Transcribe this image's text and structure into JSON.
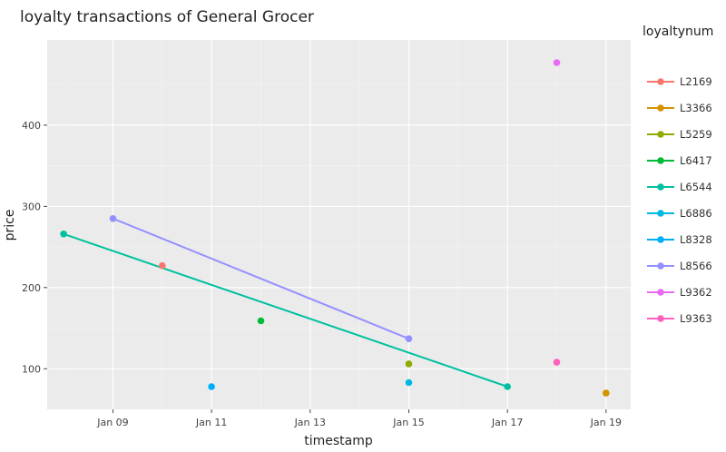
{
  "chart_data": {
    "type": "scatter",
    "title": "loyalty transactions of General Grocer",
    "xlabel": "timestamp",
    "ylabel": "price",
    "x_type": "date",
    "year": 2014,
    "xlim": [
      "2014-01-07T16:00",
      "2014-01-19T12:00"
    ],
    "ylim": [
      50,
      505
    ],
    "x_ticks": [
      {
        "date": "2014-01-09",
        "label": "Jan 09"
      },
      {
        "date": "2014-01-11",
        "label": "Jan 11"
      },
      {
        "date": "2014-01-13",
        "label": "Jan 13"
      },
      {
        "date": "2014-01-15",
        "label": "Jan 15"
      },
      {
        "date": "2014-01-17",
        "label": "Jan 17"
      },
      {
        "date": "2014-01-19",
        "label": "Jan 19"
      }
    ],
    "y_ticks": [
      100,
      200,
      300,
      400
    ],
    "grid": true,
    "legend": {
      "title": "loyaltynum",
      "position": "right"
    },
    "series": [
      {
        "name": "L2169",
        "color": "#F8766D",
        "points": [
          {
            "x": "2014-01-10",
            "y": 227
          }
        ]
      },
      {
        "name": "L3366",
        "color": "#D39200",
        "points": [
          {
            "x": "2014-01-19",
            "y": 70
          }
        ]
      },
      {
        "name": "L5259",
        "color": "#93AA00",
        "points": [
          {
            "x": "2014-01-15",
            "y": 106
          }
        ]
      },
      {
        "name": "L6417",
        "color": "#00BA38",
        "points": [
          {
            "x": "2014-01-12",
            "y": 159
          }
        ]
      },
      {
        "name": "L6544",
        "color": "#00C19F",
        "points": [
          {
            "x": "2014-01-08",
            "y": 266
          },
          {
            "x": "2014-01-17",
            "y": 78
          }
        ]
      },
      {
        "name": "L6886",
        "color": "#00B9E3",
        "points": [
          {
            "x": "2014-01-15",
            "y": 83
          }
        ]
      },
      {
        "name": "L8328",
        "color": "#00ADFA",
        "points": [
          {
            "x": "2014-01-11",
            "y": 78
          }
        ]
      },
      {
        "name": "L8566",
        "color": "#9590FF",
        "points": [
          {
            "x": "2014-01-09",
            "y": 285
          },
          {
            "x": "2014-01-15",
            "y": 137
          }
        ]
      },
      {
        "name": "L9362",
        "color": "#E76BF3",
        "points": [
          {
            "x": "2014-01-18",
            "y": 477
          }
        ]
      },
      {
        "name": "L9363",
        "color": "#FF62BC",
        "points": [
          {
            "x": "2014-01-18",
            "y": 108
          }
        ]
      }
    ]
  }
}
